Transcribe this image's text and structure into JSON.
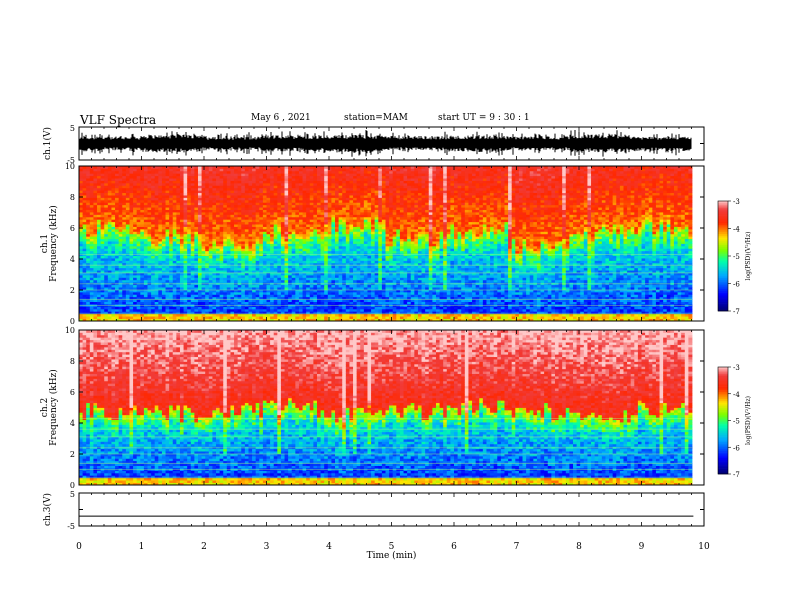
{
  "header": {
    "title": "VLF Spectra",
    "date": "May 6  , 2021",
    "station": "station=MAM",
    "start": "start  UT  =   9  : 30 : 1"
  },
  "chart_data": [
    {
      "type": "line",
      "title": "",
      "ylabel": "ch.1(V)",
      "xlim": [
        0,
        10
      ],
      "ylim": [
        -5,
        5
      ],
      "yticks": [
        "5",
        "-5"
      ],
      "series": [
        {
          "values_min": [
            -2.2,
            -2.6,
            -1.9,
            -2.4,
            -2.8,
            -2.1,
            -2.5,
            -2.0,
            -2.7,
            -2.3
          ],
          "values_max": [
            2.1,
            2.7,
            2.0,
            2.5,
            2.6,
            2.3,
            2.4,
            2.2,
            2.8,
            2.1
          ]
        }
      ]
    },
    {
      "type": "heatmap",
      "ylabel_top": "ch.1",
      "ylabel": "Frequency (kHz)",
      "xlim": [
        0,
        9.83
      ],
      "ylim": [
        0,
        10
      ],
      "yticks": [
        "0",
        "2",
        "4",
        "6",
        "8",
        "10"
      ],
      "transition_khz": [
        6.0,
        5.5,
        5.0,
        5.6,
        6.2,
        5.3,
        5.8,
        4.9,
        5.7,
        6.1
      ],
      "colorbar": {
        "label": "log(PSD)(V²/Hz)",
        "range": [
          -7,
          -3
        ],
        "ticks": [
          "-3",
          "-4",
          "-5",
          "-6",
          "-7"
        ]
      }
    },
    {
      "type": "heatmap",
      "ylabel_top": "ch.2",
      "ylabel": "Frequency (kHz)",
      "xlim": [
        0,
        9.83
      ],
      "ylim": [
        0,
        10
      ],
      "yticks": [
        "0",
        "2",
        "4",
        "6",
        "8",
        "10"
      ],
      "transition_khz": [
        4.8,
        4.6,
        4.9,
        5.0,
        4.5,
        4.7,
        5.1,
        4.8,
        4.6,
        4.9
      ],
      "colorbar": {
        "label": "log(PSD)(V²/Hz)",
        "range": [
          -7,
          -3
        ],
        "ticks": [
          "-3",
          "-4",
          "-5",
          "-6",
          "-7"
        ]
      }
    },
    {
      "type": "line",
      "ylabel": "ch.3(V)",
      "xlim": [
        0,
        10
      ],
      "ylim": [
        -5,
        5
      ],
      "yticks": [
        "5",
        "-5"
      ],
      "series": [
        {
          "x": [
            0,
            9.83
          ],
          "values": [
            -2,
            -2
          ]
        }
      ]
    }
  ],
  "xaxis": {
    "label": "Time  (min)",
    "ticks": [
      "0",
      "1",
      "2",
      "3",
      "4",
      "5",
      "6",
      "7",
      "8",
      "9",
      "10"
    ]
  },
  "colors": {
    "spectrogram_scale": [
      "#000080",
      "#0000ff",
      "#00c8ff",
      "#00ff80",
      "#c8ff00",
      "#ffc800",
      "#ff2000",
      "#ffd0d0"
    ]
  }
}
